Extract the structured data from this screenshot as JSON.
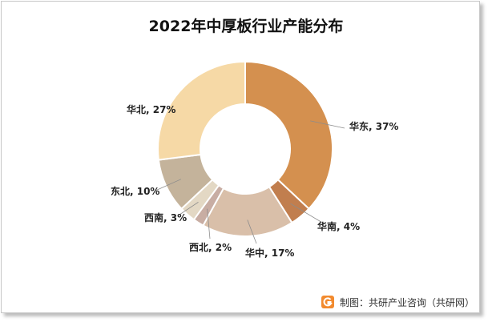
{
  "title": "2022年中厚板行业产能分布",
  "source": "制图：共研产业咨询（共研网）",
  "chart_data": {
    "type": "pie",
    "variant": "donut",
    "title": "2022年中厚板行业产能分布",
    "slices": [
      {
        "name": "华东",
        "value": 37,
        "label": "华东, 37%",
        "color": "#D4904F"
      },
      {
        "name": "华南",
        "value": 4,
        "label": "华南, 4%",
        "color": "#C17E4E"
      },
      {
        "name": "华中",
        "value": 17,
        "label": "华中, 17%",
        "color": "#D9BFA9"
      },
      {
        "name": "西北",
        "value": 2,
        "label": "西北, 2%",
        "color": "#C8ADA3"
      },
      {
        "name": "西南",
        "value": 3,
        "label": "西南, 3%",
        "color": "#E3D8C4"
      },
      {
        "name": "东北",
        "value": 10,
        "label": "东北, 10%",
        "color": "#C4B39B"
      },
      {
        "name": "华北",
        "value": 27,
        "label": "华北, 27%",
        "color": "#F6D9A6"
      }
    ],
    "start": "12 o'clock",
    "direction": "clockwise",
    "legend": "none (data labels with leader lines)"
  }
}
